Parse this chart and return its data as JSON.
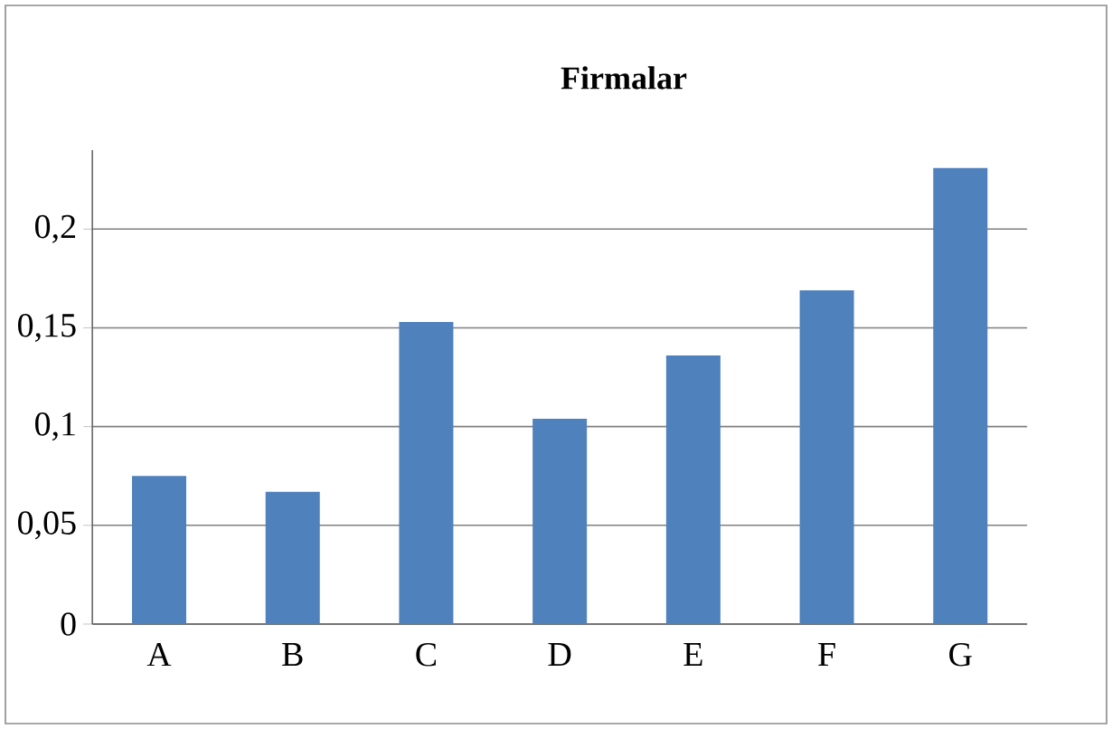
{
  "chart_data": {
    "type": "bar",
    "title": "Firmalar",
    "categories": [
      "A",
      "B",
      "C",
      "D",
      "E",
      "F",
      "G"
    ],
    "values": [
      0.075,
      0.067,
      0.153,
      0.104,
      0.136,
      0.169,
      0.231
    ],
    "color": "#4f81bd",
    "ylim": [
      0,
      0.24
    ],
    "yticks": [
      0,
      {
        "value": 0.05,
        "label": "0,05"
      },
      {
        "value": 0.1,
        "label": "0,1"
      },
      {
        "value": 0.15,
        "label": "0,15"
      },
      {
        "value": 0.2,
        "label": "0,2"
      }
    ],
    "grid": "y"
  }
}
